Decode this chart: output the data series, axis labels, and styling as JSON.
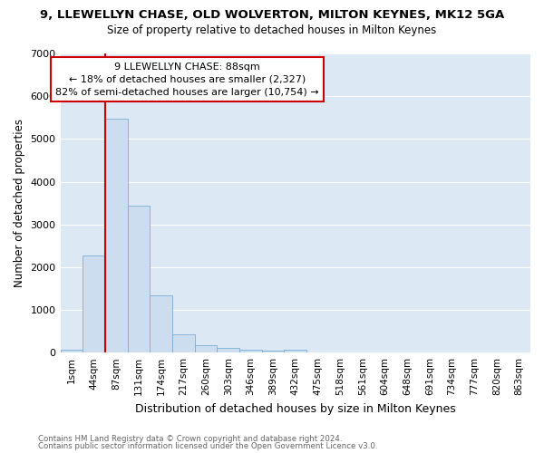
{
  "title": "9, LLEWELLYN CHASE, OLD WOLVERTON, MILTON KEYNES, MK12 5GA",
  "subtitle": "Size of property relative to detached houses in Milton Keynes",
  "xlabel": "Distribution of detached houses by size in Milton Keynes",
  "ylabel": "Number of detached properties",
  "footnote1": "Contains HM Land Registry data © Crown copyright and database right 2024.",
  "footnote2": "Contains public sector information licensed under the Open Government Licence v3.0.",
  "bar_labels": [
    "1sqm",
    "44sqm",
    "87sqm",
    "131sqm",
    "174sqm",
    "217sqm",
    "260sqm",
    "303sqm",
    "346sqm",
    "389sqm",
    "432sqm",
    "475sqm",
    "518sqm",
    "561sqm",
    "604sqm",
    "648sqm",
    "691sqm",
    "734sqm",
    "777sqm",
    "820sqm",
    "863sqm"
  ],
  "bar_values": [
    75,
    2270,
    5480,
    3430,
    1330,
    430,
    165,
    100,
    70,
    55,
    60,
    0,
    0,
    0,
    0,
    0,
    0,
    0,
    0,
    0,
    0
  ],
  "bar_color": "#ccddf0",
  "bar_edge_color": "#7aadd4",
  "plot_bg_color": "#dce9f5",
  "fig_bg_color": "#ffffff",
  "grid_color": "#ffffff",
  "vline_color": "#cc0000",
  "vline_index": 2,
  "annotation_text": "9 LLEWELLYN CHASE: 88sqm\n← 18% of detached houses are smaller (2,327)\n82% of semi-detached houses are larger (10,754) →",
  "annotation_box_facecolor": "#ffffff",
  "annotation_box_edgecolor": "#cc0000",
  "ylim": [
    0,
    7000
  ],
  "yticks": [
    0,
    1000,
    2000,
    3000,
    4000,
    5000,
    6000,
    7000
  ],
  "title_fontsize": 9.5,
  "subtitle_fontsize": 8.5,
  "ylabel_fontsize": 8.5,
  "xlabel_fontsize": 9,
  "tick_fontsize": 8,
  "xtick_fontsize": 7.5,
  "annot_fontsize": 8,
  "footnote_fontsize": 6.2,
  "footnote_color": "#666666"
}
